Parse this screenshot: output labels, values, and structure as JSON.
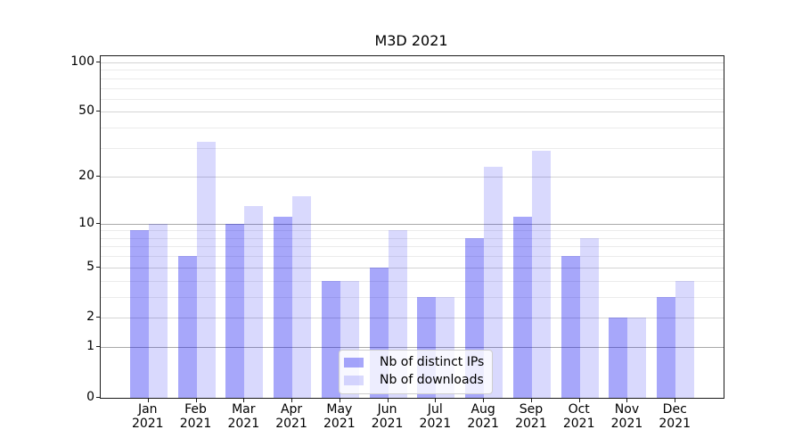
{
  "title": "M3D 2021",
  "chart_data": {
    "type": "bar",
    "title": "M3D 2021",
    "categories": [
      "Jan 2021",
      "Feb 2021",
      "Mar 2021",
      "Apr 2021",
      "May 2021",
      "Jun 2021",
      "Jul 2021",
      "Aug 2021",
      "Sep 2021",
      "Oct 2021",
      "Nov 2021",
      "Dec 2021"
    ],
    "series": [
      {
        "name": "Nb of distinct IPs",
        "color": "#0a0af05c",
        "values": [
          9,
          6,
          10,
          11,
          4,
          5,
          3,
          8,
          11,
          6,
          2,
          3
        ]
      },
      {
        "name": "Nb of downloads",
        "color": "#0a0af028",
        "values": [
          10,
          33,
          13,
          15,
          4,
          9,
          3,
          23,
          29,
          8,
          2,
          4
        ]
      }
    ],
    "xlabel": "",
    "ylabel": "",
    "yscale": "log1p",
    "y_tick_values": [
      0,
      1,
      2,
      5,
      10,
      20,
      50,
      100
    ],
    "y_tick_labels": [
      "0",
      "1",
      "2",
      "5",
      "10",
      "20",
      "50",
      "100"
    ],
    "ylim": [
      0,
      109
    ],
    "grid": "both",
    "legend": {
      "position": "lower center",
      "labels": [
        "Nb of distinct IPs",
        "Nb of downloads"
      ]
    }
  }
}
